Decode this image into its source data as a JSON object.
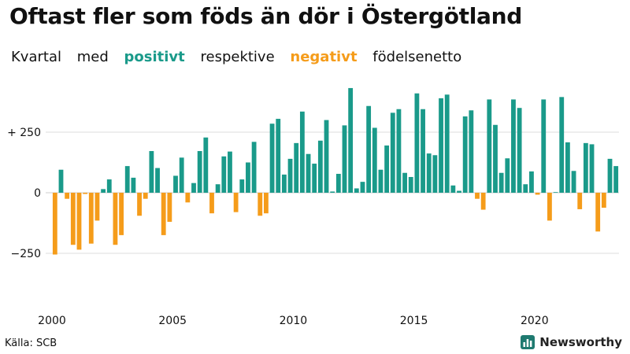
{
  "title": "Oftast fler som föds än dör i Östergötland",
  "subtitle": {
    "w1": "Kvartal",
    "w2": "med",
    "positive_word": "positivt",
    "w3": "respektive",
    "negative_word": "negativt",
    "w4": "födelsenetto"
  },
  "source": "Källa: SCB",
  "brand": {
    "name": "Newsworthy",
    "icon": "chart-bars-icon"
  },
  "colors": {
    "positive": "#1a9a8a",
    "negative": "#f59c1a",
    "gridline": "#dddddd",
    "brand": "#1f7a70"
  },
  "chart_data": {
    "type": "bar",
    "title": "Oftast fler som föds än dör i Östergötland",
    "xlabel": "",
    "ylabel": "",
    "ylim": [
      -340,
      440
    ],
    "y_ticks": [
      250,
      0,
      -250
    ],
    "y_tick_labels": [
      "+ 250",
      "0",
      "−250"
    ],
    "x_tick_labels": [
      "2000",
      "2005",
      "2010",
      "2015",
      "2020"
    ],
    "start_year": 2000,
    "values": [
      -255,
      95,
      -25,
      -215,
      -235,
      -5,
      -210,
      -115,
      15,
      55,
      -215,
      -175,
      110,
      62,
      -95,
      -25,
      172,
      102,
      -175,
      -120,
      70,
      145,
      -40,
      40,
      172,
      228,
      -85,
      35,
      150,
      170,
      -80,
      55,
      125,
      210,
      -95,
      -85,
      285,
      305,
      75,
      140,
      205,
      335,
      160,
      120,
      215,
      300,
      5,
      78,
      278,
      432,
      18,
      45,
      358,
      268,
      95,
      195,
      330,
      345,
      82,
      65,
      410,
      345,
      162,
      155,
      390,
      405,
      30,
      8,
      315,
      340,
      -25,
      -70,
      385,
      280,
      82,
      142,
      385,
      350,
      35,
      88,
      -8,
      385,
      -115,
      0,
      395,
      208,
      90,
      -68,
      205,
      200,
      -160,
      -62,
      140,
      110
    ]
  }
}
